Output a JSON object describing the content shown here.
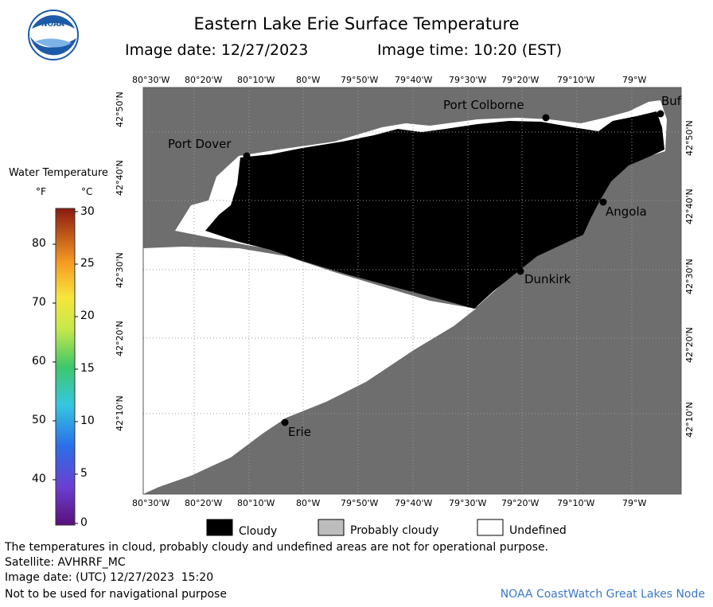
{
  "header": {
    "title": "Eastern Lake Erie Surface Temperature",
    "image_date": "Image date: 12/27/2023",
    "image_time": "Image time: 10:20 (EST)"
  },
  "axes": {
    "lon_labels": [
      "80°30'W",
      "80°20'W",
      "80°10'W",
      "80°W",
      "79°50'W",
      "79°40'W",
      "79°30'W",
      "79°20'W",
      "79°10'W",
      "79°W"
    ],
    "lat_labels": [
      "42°50'N",
      "42°40'N",
      "42°30'N",
      "42°20'N",
      "42°10'N"
    ]
  },
  "places": {
    "port_colborne": "Port Colborne",
    "buffalo": "Buf",
    "port_dover": "Port Dover",
    "angola": "Angola",
    "dunkirk": "Dunkirk",
    "erie": "Erie"
  },
  "legend": {
    "title": "Water Temperature",
    "unit_f": "°F",
    "unit_c": "°C",
    "f_ticks": [
      "80",
      "70",
      "60",
      "50",
      "40"
    ],
    "c_ticks": [
      "30",
      "25",
      "20",
      "15",
      "10",
      "5",
      "0"
    ],
    "cloudy": "Cloudy",
    "probably_cloudy": "Probably cloudy",
    "undefined": "Undefined"
  },
  "colors": {
    "land": "#6e6e6e",
    "cloud": "#000000",
    "probably_cloudy": "#bdbdbd",
    "undefined": "#ffffff"
  },
  "footer": {
    "disclaimer": "The temperatures in cloud, probably cloudy and undefined areas are not for operational purpose.",
    "satellite": "Satellite: AVHRRF_MC",
    "utc_date": "Image date: (UTC) 12/27/2023  15:20",
    "nav_warning": "Not to be used for navigational purpose",
    "credit": "NOAA CoastWatch Great Lakes Node"
  }
}
